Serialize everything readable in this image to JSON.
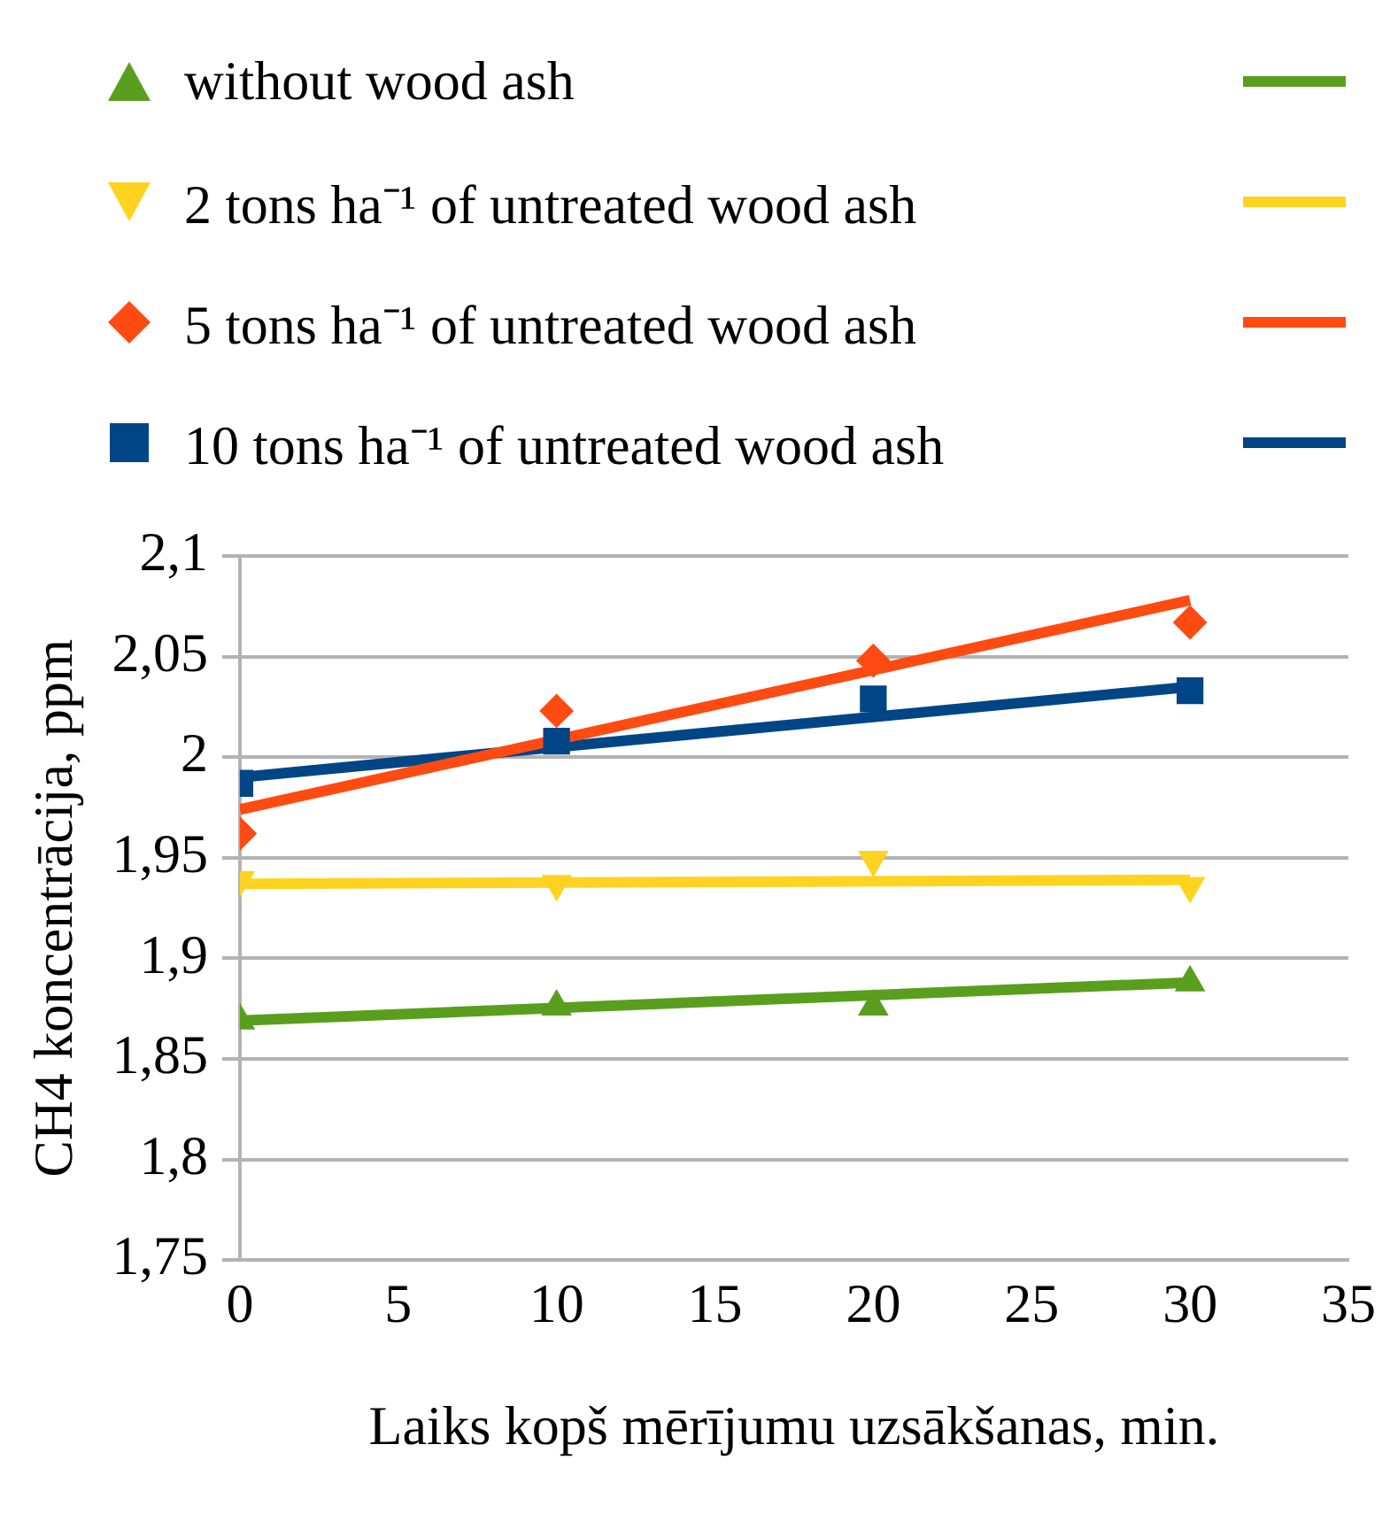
{
  "chart_data": {
    "type": "scatter",
    "xlabel": "Laiks kopš mērījumu uzsākšanas, min.",
    "ylabel": "CH4 koncentrācija, ppm",
    "xlim": [
      0,
      35
    ],
    "xticks": [
      0,
      5,
      10,
      15,
      20,
      25,
      30,
      35
    ],
    "ylim": [
      1.75,
      2.1
    ],
    "yticks": [
      {
        "value": 1.75,
        "label": "1,75"
      },
      {
        "value": 1.8,
        "label": "1,8"
      },
      {
        "value": 1.85,
        "label": "1,85"
      },
      {
        "value": 1.9,
        "label": "1,9"
      },
      {
        "value": 1.95,
        "label": "1,95"
      },
      {
        "value": 2,
        "label": "2"
      },
      {
        "value": 2.05,
        "label": "2,05"
      },
      {
        "value": 2.1,
        "label": "2,1"
      }
    ],
    "grid": "y",
    "legend": "top",
    "series": [
      {
        "type": "scatter",
        "name": "without wood ash",
        "color": "#5a9e1e",
        "marker": "triangle",
        "x": [
          0,
          10,
          20,
          30
        ],
        "values": [
          1.869,
          1.876,
          1.876,
          1.888
        ]
      },
      {
        "type": "scatter",
        "name": "2 tons ha⁻¹ of untreated wood ash",
        "color": "#ffd320",
        "marker": "triangle_down",
        "x": [
          0,
          10,
          20,
          30
        ],
        "values": [
          1.939,
          1.937,
          1.949,
          1.936
        ]
      },
      {
        "type": "scatter",
        "name": "5 tons ha⁻¹ of untreated wood ash",
        "color": "#ff4a12",
        "marker": "diamond",
        "x": [
          0,
          10,
          20,
          30
        ],
        "values": [
          1.962,
          2.023,
          2.048,
          2.067
        ]
      },
      {
        "type": "scatter",
        "name": "10 tons ha⁻¹ of untreated wood ash",
        "color": "#004586",
        "marker": "square",
        "x": [
          0,
          10,
          20,
          30
        ],
        "values": [
          1.987,
          2.008,
          2.029,
          2.033
        ]
      },
      {
        "type": "line",
        "color": "#5a9e1e",
        "x": [
          0,
          30
        ],
        "values": [
          1.869,
          1.888
        ]
      },
      {
        "type": "line",
        "color": "#ffd320",
        "x": [
          0,
          30
        ],
        "values": [
          1.937,
          1.939
        ]
      },
      {
        "type": "line",
        "color": "#ff4a12",
        "x": [
          0,
          30
        ],
        "values": [
          1.974,
          2.078
        ]
      },
      {
        "type": "line",
        "color": "#004586",
        "x": [
          0,
          30
        ],
        "values": [
          1.99,
          2.035
        ]
      }
    ]
  }
}
